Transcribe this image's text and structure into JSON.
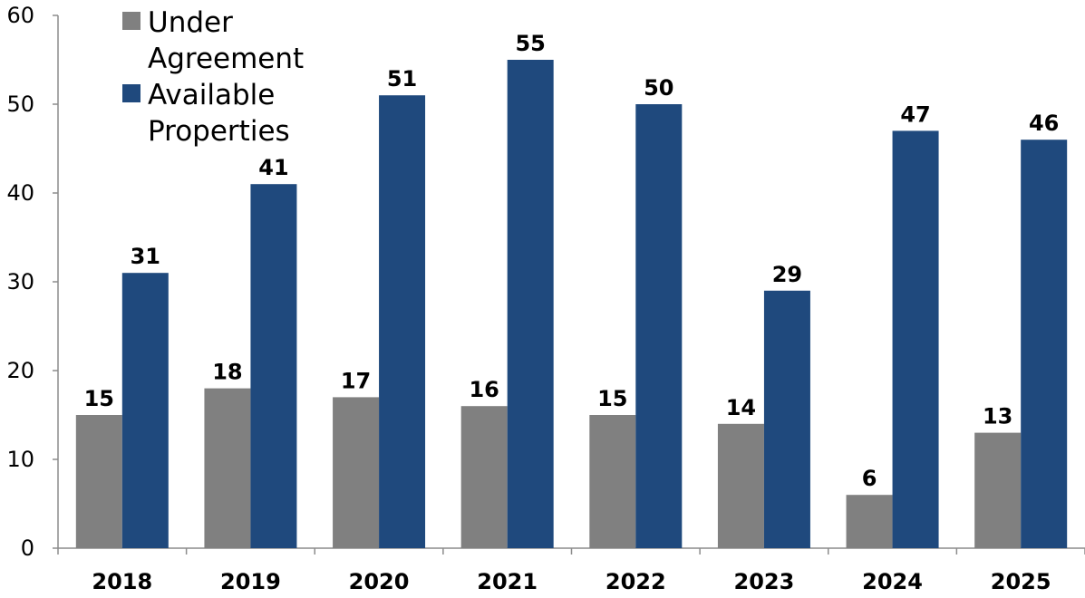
{
  "chart_data": {
    "type": "bar",
    "categories": [
      "2018",
      "2019",
      "2020",
      "2021",
      "2022",
      "2023",
      "2024",
      "2025"
    ],
    "series": [
      {
        "name": "Under Agreement",
        "values": [
          15,
          18,
          17,
          16,
          15,
          14,
          6,
          13
        ],
        "color": "#808080"
      },
      {
        "name": "Available Properties",
        "values": [
          31,
          41,
          51,
          55,
          50,
          29,
          47,
          46
        ],
        "color": "#1f497d"
      }
    ],
    "yticks": [
      0,
      10,
      20,
      30,
      40,
      50,
      60
    ],
    "ylim": [
      0,
      60
    ],
    "title": "",
    "xlabel": "",
    "ylabel": "",
    "grid": false,
    "legend_position": "top-left",
    "data_labels": true
  }
}
